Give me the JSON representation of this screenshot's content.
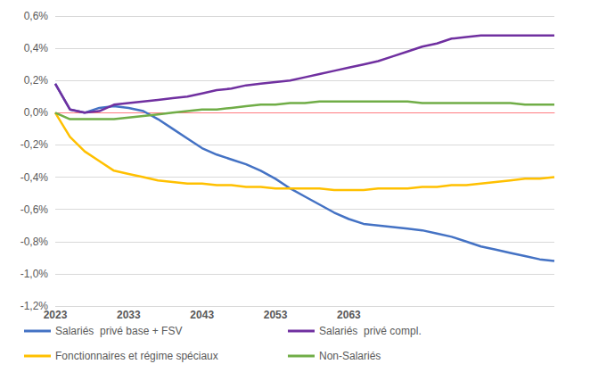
{
  "chart_data": {
    "type": "line",
    "categories": [
      "2023",
      null,
      null,
      null,
      null,
      "2033",
      null,
      null,
      null,
      null,
      "2043",
      null,
      null,
      null,
      null,
      "2053",
      null,
      null,
      null,
      null,
      "2063",
      null,
      null,
      null,
      null,
      null,
      null,
      null,
      null,
      null,
      null,
      null,
      null,
      null,
      null
    ],
    "series": [
      {
        "name": "Salariés  privé base + FSV",
        "color": "#4472C4",
        "values": [
          0.18,
          0.02,
          0.0,
          0.03,
          0.04,
          0.03,
          0.01,
          -0.04,
          -0.1,
          -0.16,
          -0.22,
          -0.26,
          -0.29,
          -0.32,
          -0.36,
          -0.41,
          -0.47,
          -0.52,
          -0.57,
          -0.62,
          -0.66,
          -0.69,
          -0.7,
          -0.71,
          -0.72,
          -0.73,
          -0.75,
          -0.77,
          -0.8,
          -0.83,
          -0.85,
          -0.87,
          -0.89,
          -0.91,
          -0.92
        ]
      },
      {
        "name": "Salariés  privé compl.",
        "color": "#7030A0",
        "values": [
          0.18,
          0.02,
          0.0,
          0.01,
          0.05,
          0.06,
          0.07,
          0.08,
          0.09,
          0.1,
          0.12,
          0.14,
          0.15,
          0.17,
          0.18,
          0.19,
          0.2,
          0.22,
          0.24,
          0.26,
          0.28,
          0.3,
          0.32,
          0.35,
          0.38,
          0.41,
          0.43,
          0.46,
          0.47,
          0.48,
          0.48,
          0.48,
          0.48,
          0.48,
          0.48
        ]
      },
      {
        "name": "Fonctionnaires et régime spéciaux",
        "color": "#FFC000",
        "values": [
          0.0,
          -0.15,
          -0.24,
          -0.3,
          -0.36,
          -0.38,
          -0.4,
          -0.42,
          -0.43,
          -0.44,
          -0.44,
          -0.45,
          -0.45,
          -0.46,
          -0.46,
          -0.47,
          -0.47,
          -0.47,
          -0.47,
          -0.48,
          -0.48,
          -0.48,
          -0.47,
          -0.47,
          -0.47,
          -0.46,
          -0.46,
          -0.45,
          -0.45,
          -0.44,
          -0.43,
          -0.42,
          -0.41,
          -0.41,
          -0.4
        ]
      },
      {
        "name": "Non-Salariés",
        "color": "#70AD47",
        "values": [
          0.0,
          -0.04,
          -0.04,
          -0.04,
          -0.04,
          -0.03,
          -0.02,
          -0.01,
          0.0,
          0.01,
          0.02,
          0.02,
          0.03,
          0.04,
          0.05,
          0.05,
          0.06,
          0.06,
          0.07,
          0.07,
          0.07,
          0.07,
          0.07,
          0.07,
          0.07,
          0.06,
          0.06,
          0.06,
          0.06,
          0.06,
          0.06,
          0.06,
          0.05,
          0.05,
          0.05
        ]
      }
    ],
    "ylim": [
      -1.2,
      0.6
    ],
    "yticks": [
      {
        "value": -1.2,
        "label": "-1,2%"
      },
      {
        "value": -1.0,
        "label": "-1,0%"
      },
      {
        "value": -0.8,
        "label": "-0,8%"
      },
      {
        "value": -0.6,
        "label": "-0,6%"
      },
      {
        "value": -0.4,
        "label": "-0,4%"
      },
      {
        "value": -0.2,
        "label": "-0,2%"
      },
      {
        "value": 0.0,
        "label": "0,0%"
      },
      {
        "value": 0.2,
        "label": "0,2%"
      },
      {
        "value": 0.4,
        "label": "0,4%"
      },
      {
        "value": 0.6,
        "label": "0,6%"
      }
    ],
    "grid": true,
    "legend": "bottom"
  }
}
